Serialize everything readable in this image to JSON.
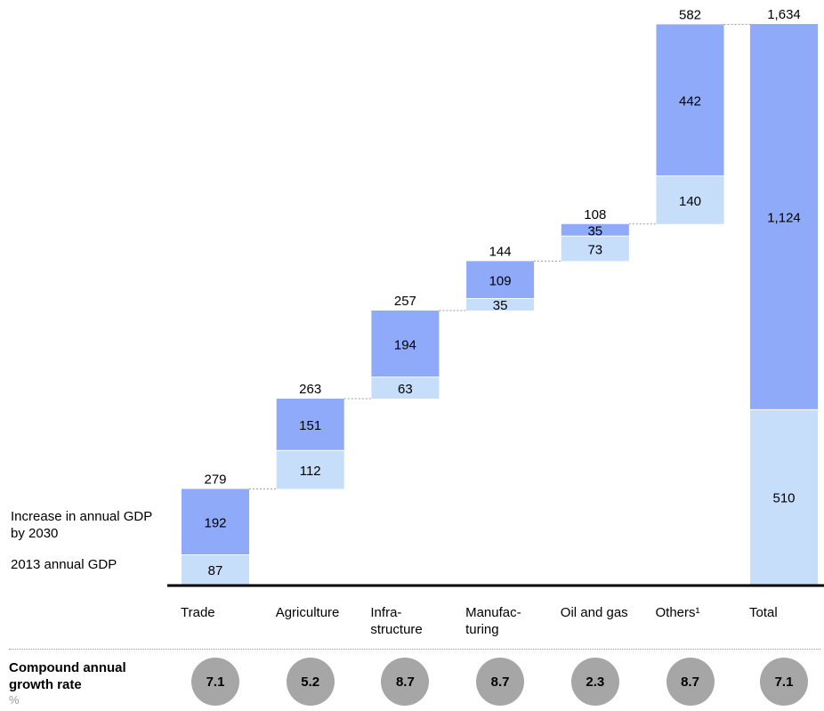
{
  "chart_data": {
    "type": "bar",
    "categories": [
      "Trade",
      "Agriculture",
      "Infra-\nstructure",
      "Manufac-\nturing",
      "Oil and gas",
      "Others¹",
      "Total"
    ],
    "series": [
      {
        "name": "2013 annual GDP",
        "values": [
          87,
          112,
          63,
          35,
          73,
          140,
          510
        ]
      },
      {
        "name": "Increase in annual GDP by 2030",
        "values": [
          192,
          151,
          194,
          109,
          35,
          442,
          1124
        ]
      }
    ],
    "totals": [
      "279",
      "263",
      "257",
      "144",
      "108",
      "582",
      "1,634"
    ],
    "segment_labels": [
      [
        "87",
        "192"
      ],
      [
        "112",
        "151"
      ],
      [
        "63",
        "194"
      ],
      [
        "35",
        "109"
      ],
      [
        "73",
        "35"
      ],
      [
        "140",
        "442"
      ],
      [
        "510",
        "1,124"
      ]
    ],
    "waterfall": true,
    "ylim": [
      0,
      1634
    ]
  },
  "legend": {
    "increase": "Increase in annual GDP\nby 2030",
    "base": "2013 annual GDP"
  },
  "cagr": {
    "title": "Compound annual\ngrowth rate",
    "unit": "%",
    "values": [
      "7.1",
      "5.2",
      "8.7",
      "8.7",
      "2.3",
      "8.7",
      "7.1"
    ]
  },
  "colors": {
    "increase": "#8eaaf8",
    "base": "#c6defa",
    "circle": "#a6a6a6",
    "connector": "#999999"
  }
}
